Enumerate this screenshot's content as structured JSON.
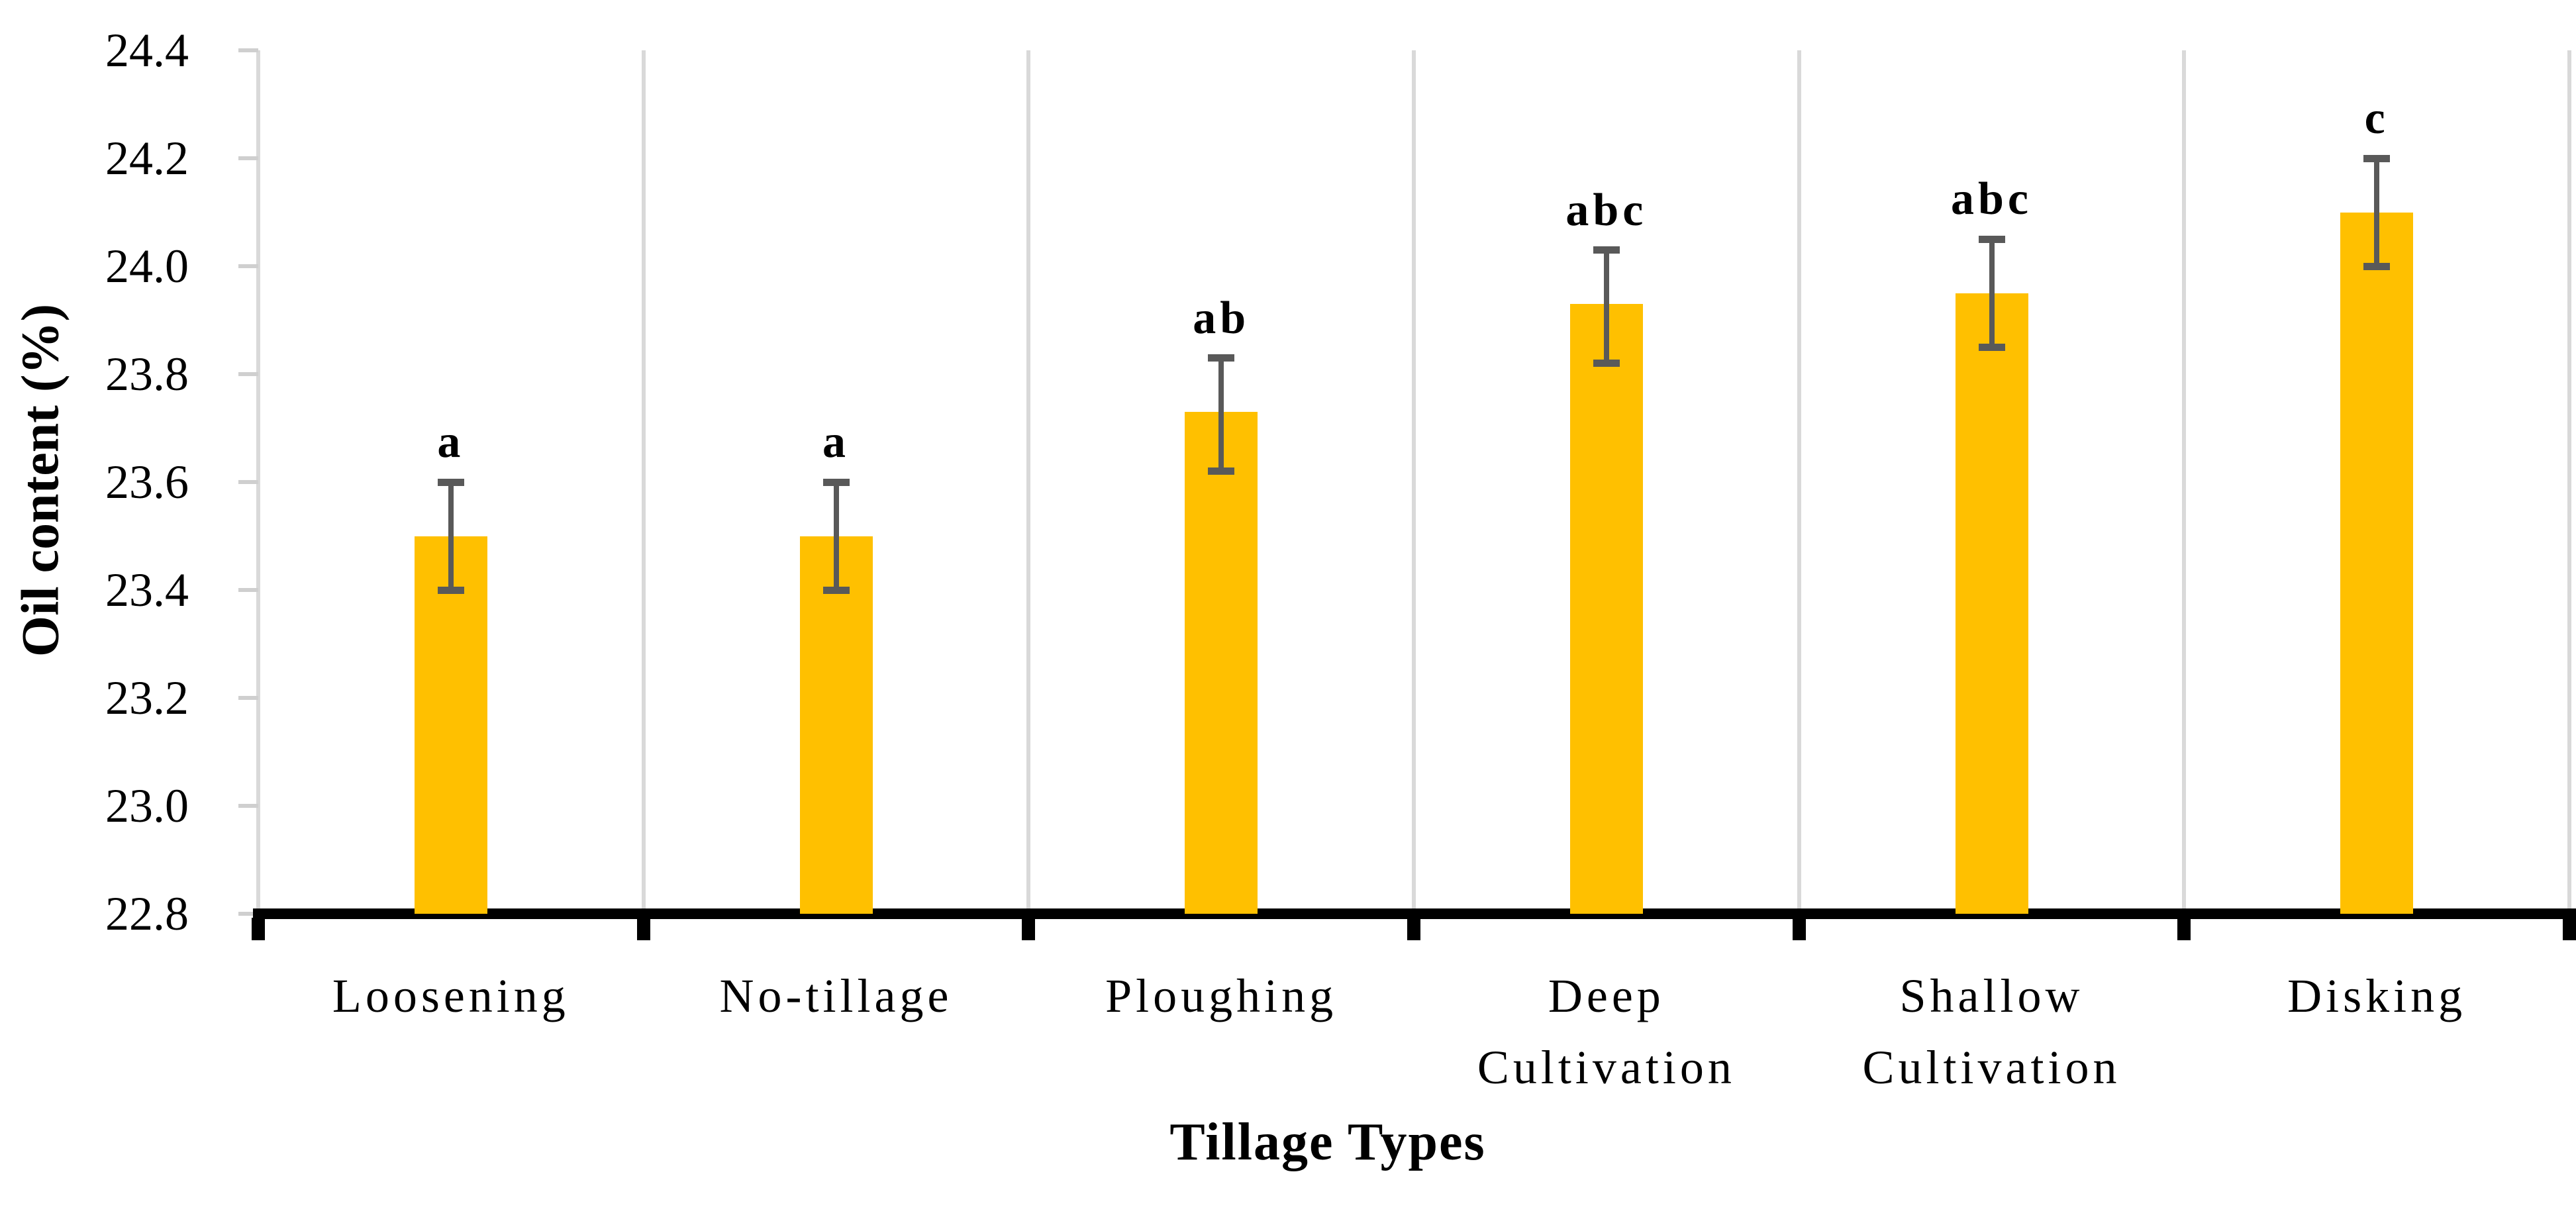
{
  "chart_data": {
    "type": "bar",
    "title": "",
    "xlabel": "Tillage Types",
    "ylabel": "Oil content (%)",
    "categories": [
      "Loosening",
      "No-tillage",
      "Ploughing",
      "Deep Cultivation",
      "Shallow Cultivation",
      "Disking"
    ],
    "category_label_lines": [
      [
        "Loosening"
      ],
      [
        "No-tillage"
      ],
      [
        "Ploughing"
      ],
      [
        "Deep",
        "Cultivation"
      ],
      [
        "Shallow",
        "Cultivation"
      ],
      [
        "Disking"
      ]
    ],
    "values": [
      23.5,
      23.5,
      23.73,
      23.93,
      23.95,
      24.1
    ],
    "error_low": [
      23.4,
      23.4,
      23.62,
      23.82,
      23.85,
      24.0
    ],
    "error_high": [
      23.6,
      23.6,
      23.83,
      24.03,
      24.05,
      24.2
    ],
    "sig_letters": [
      "a",
      "a",
      "ab",
      "abc",
      "abc",
      "c"
    ],
    "ylim": [
      22.8,
      24.4
    ],
    "ytick_step": 0.2,
    "ytick_labels": [
      "24.4",
      "24.2",
      "24.0",
      "23.8",
      "23.6",
      "23.4",
      "23.2",
      "23.0",
      "22.8"
    ],
    "grid": "vertical lines at category boundaries",
    "legend_position": "none",
    "colors": {
      "bar_fill": "#FFC000",
      "error_bar": "#595959",
      "gridline": "#D9D9D9",
      "axis_line": "#000000",
      "text": "#000000"
    }
  }
}
